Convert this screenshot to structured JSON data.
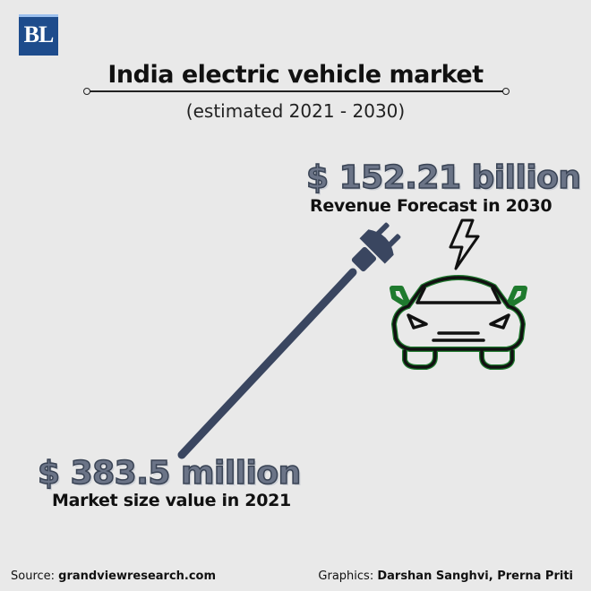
{
  "logo": {
    "text": "BL"
  },
  "title": "India electric vehicle market",
  "subtitle": "(estimated 2021 - 2030)",
  "forecast": {
    "value": "$ 152.21 billion",
    "label": "Revenue Forecast  in 2030"
  },
  "current": {
    "value": "$ 383.5 million",
    "label": "Market size value in 2021"
  },
  "footer": {
    "source_prefix": "Source: ",
    "source": "grandviewresearch.com",
    "graphics_prefix": "Graphics: ",
    "graphics": "Darshan Sanghvi, Prerna Priti"
  },
  "icons": {
    "plug": "plug-icon",
    "car": "car-icon",
    "bolt": "lightning-bolt-icon"
  },
  "colors": {
    "plug": "#3a4660",
    "car_outline": "#1f7a2e",
    "value_fill": "#6b7487",
    "logo_bg": "#1e4c8c"
  }
}
